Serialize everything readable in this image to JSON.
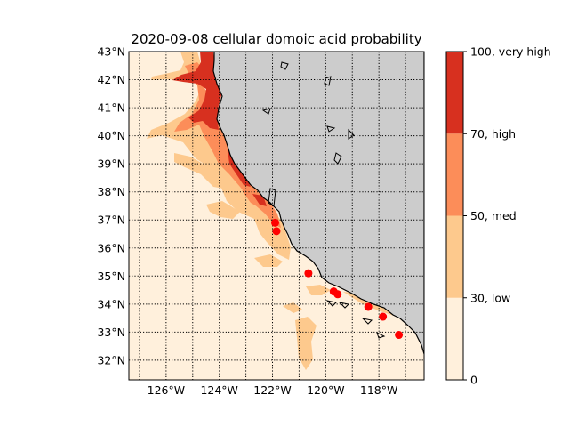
{
  "title": "2020-09-08 cellular domoic acid probability",
  "lat_labels": [
    "43°N",
    "42°N",
    "41°N",
    "40°N",
    "39°N",
    "38°N",
    "37°N",
    "36°N",
    "35°N",
    "34°N",
    "33°N",
    "32°N"
  ],
  "lon_labels": [
    "126°W",
    "124°W",
    "122°W",
    "120°W",
    "118°W"
  ],
  "lat_values": [
    43,
    42,
    41,
    40,
    39,
    38,
    37,
    36,
    35,
    34,
    33,
    32
  ],
  "lon_values": [
    -126,
    -124,
    -122,
    -120,
    -118
  ],
  "map_extent": {
    "lon_min": -127.4,
    "lon_max": -116.3,
    "lat_min": 31.3,
    "lat_max": 43.0
  },
  "colorbar": {
    "tick_labels": [
      "0",
      "30, low",
      "50, med",
      "70, high",
      "100, very high"
    ],
    "levels": [
      0,
      30,
      50,
      70,
      100
    ],
    "colors": [
      "#fff0dc",
      "#fdc98d",
      "#fc8d59",
      "#d7301f"
    ]
  },
  "colors": {
    "ocean_background": "#fff0dc",
    "land": "#cccccc",
    "marker": "#ff0000"
  },
  "observations": [
    {
      "lat": 36.9,
      "lon": -121.9
    },
    {
      "lat": 36.6,
      "lon": -121.85
    },
    {
      "lat": 35.1,
      "lon": -120.65
    },
    {
      "lat": 34.45,
      "lon": -119.7
    },
    {
      "lat": 34.35,
      "lon": -119.55
    },
    {
      "lat": 33.9,
      "lon": -118.4
    },
    {
      "lat": 33.55,
      "lon": -117.85
    },
    {
      "lat": 32.9,
      "lon": -117.25
    }
  ]
}
